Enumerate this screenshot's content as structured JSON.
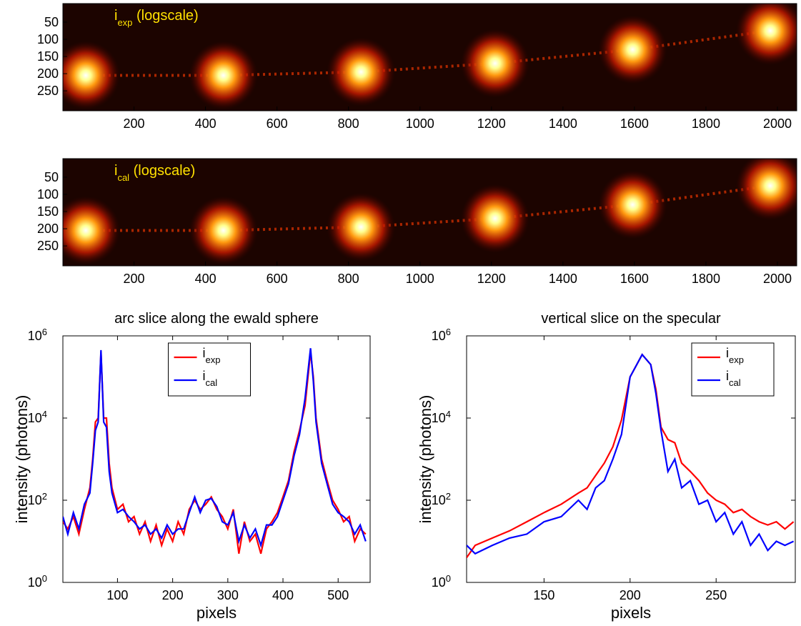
{
  "chart_data": [
    {
      "type": "image",
      "label": "i",
      "label_sub": "exp",
      "label_suffix": " (logscale)",
      "xlim": [
        1,
        2054
      ],
      "ylim": [
        -4,
        308
      ],
      "xticks": [
        200,
        400,
        600,
        800,
        1000,
        1200,
        1400,
        1600,
        1800,
        2000
      ],
      "yticks": [
        50,
        100,
        150,
        200,
        250
      ],
      "peaks": {
        "x": [
          65,
          450,
          835,
          1210,
          1595,
          1980
        ],
        "y": [
          205,
          205,
          195,
          170,
          130,
          75
        ]
      }
    },
    {
      "type": "image",
      "label": "i",
      "label_sub": "cal",
      "label_suffix": " (logscale)",
      "xlim": [
        1,
        2054
      ],
      "ylim": [
        -4,
        308
      ],
      "xticks": [
        200,
        400,
        600,
        800,
        1000,
        1200,
        1400,
        1600,
        1800,
        2000
      ],
      "yticks": [
        50,
        100,
        150,
        200,
        250
      ],
      "peaks": {
        "x": [
          65,
          450,
          835,
          1210,
          1595,
          1980
        ],
        "y": [
          205,
          205,
          195,
          170,
          130,
          75
        ]
      }
    },
    {
      "type": "line",
      "title": "arc slice along the ewald sphere",
      "xlabel": "pixels",
      "ylabel": "intensity (photons)",
      "log_y": true,
      "legend": "upper center",
      "xlim": [
        1,
        558
      ],
      "ylim": [
        1,
        1000000
      ],
      "xticks": [
        100,
        200,
        300,
        400,
        500
      ],
      "yticks": [
        {
          "value": 1,
          "label": "10",
          "sup": "0"
        },
        {
          "value": 100,
          "label": "10",
          "sup": "2"
        },
        {
          "value": 10000,
          "label": "10",
          "sup": "4"
        },
        {
          "value": 1000000,
          "label": "10",
          "sup": "6"
        }
      ],
      "x": [
        1,
        10,
        20,
        30,
        40,
        50,
        55,
        60,
        65,
        70,
        75,
        80,
        85,
        90,
        100,
        110,
        120,
        130,
        140,
        150,
        160,
        170,
        180,
        190,
        200,
        210,
        220,
        230,
        240,
        250,
        260,
        270,
        280,
        290,
        300,
        310,
        320,
        330,
        340,
        350,
        360,
        370,
        380,
        390,
        400,
        410,
        420,
        430,
        440,
        450,
        455,
        460,
        470,
        480,
        490,
        500,
        510,
        520,
        530,
        540,
        550
      ],
      "series": [
        {
          "name": "i",
          "name_sub": "exp",
          "color": "#ff0000",
          "values": [
            30,
            20,
            40,
            15,
            60,
            200,
            1000,
            8000,
            10000,
            400000,
            10000,
            10000,
            800,
            200,
            60,
            80,
            30,
            40,
            15,
            30,
            10,
            25,
            8,
            20,
            10,
            30,
            15,
            60,
            100,
            60,
            80,
            120,
            60,
            40,
            20,
            60,
            5,
            30,
            10,
            15,
            5,
            20,
            30,
            50,
            120,
            300,
            1500,
            5000,
            20000,
            400000,
            100000,
            10000,
            1000,
            300,
            100,
            60,
            30,
            40,
            10,
            20,
            15
          ]
        },
        {
          "name": "i",
          "name_sub": "cal",
          "color": "#0000ff",
          "values": [
            40,
            15,
            50,
            20,
            80,
            150,
            800,
            5000,
            8000,
            450000,
            8000,
            6000,
            500,
            150,
            50,
            60,
            40,
            30,
            20,
            25,
            15,
            20,
            12,
            25,
            15,
            20,
            20,
            50,
            120,
            50,
            100,
            110,
            70,
            30,
            25,
            50,
            10,
            25,
            12,
            20,
            8,
            25,
            25,
            40,
            100,
            250,
            1200,
            4000,
            30000,
            500000,
            80000,
            8000,
            800,
            250,
            80,
            50,
            40,
            30,
            15,
            25,
            10
          ]
        }
      ]
    },
    {
      "type": "line",
      "title": "vertical slice on the specular",
      "xlabel": "pixels",
      "ylabel": "intensity (photons)",
      "log_y": true,
      "legend": "upper right",
      "xlim": [
        105,
        296
      ],
      "ylim": [
        1,
        1000000
      ],
      "xticks": [
        150,
        200,
        250
      ],
      "yticks": [
        {
          "value": 1,
          "label": "10",
          "sup": "0"
        },
        {
          "value": 100,
          "label": "10",
          "sup": "2"
        },
        {
          "value": 10000,
          "label": "10",
          "sup": "4"
        },
        {
          "value": 1000000,
          "label": "10",
          "sup": "6"
        }
      ],
      "x": [
        105,
        110,
        120,
        130,
        140,
        150,
        160,
        170,
        175,
        180,
        185,
        190,
        195,
        200,
        207,
        212,
        215,
        218,
        222,
        226,
        230,
        235,
        240,
        245,
        250,
        255,
        260,
        265,
        270,
        275,
        280,
        285,
        290,
        295
      ],
      "series": [
        {
          "name": "i",
          "name_sub": "exp",
          "color": "#ff0000",
          "values": [
            4,
            8,
            12,
            18,
            30,
            50,
            80,
            150,
            200,
            400,
            800,
            2000,
            9000,
            100000,
            350000,
            200000,
            50000,
            6000,
            3000,
            2500,
            800,
            500,
            300,
            150,
            100,
            80,
            50,
            60,
            40,
            30,
            25,
            30,
            20,
            30
          ]
        },
        {
          "name": "i",
          "name_sub": "cal",
          "color": "#0000ff",
          "values": [
            8,
            5,
            8,
            12,
            15,
            30,
            40,
            100,
            60,
            200,
            300,
            1000,
            4000,
            100000,
            350000,
            200000,
            40000,
            5000,
            500,
            1000,
            200,
            300,
            80,
            100,
            30,
            50,
            15,
            30,
            8,
            15,
            6,
            10,
            8,
            10
          ]
        }
      ]
    }
  ]
}
